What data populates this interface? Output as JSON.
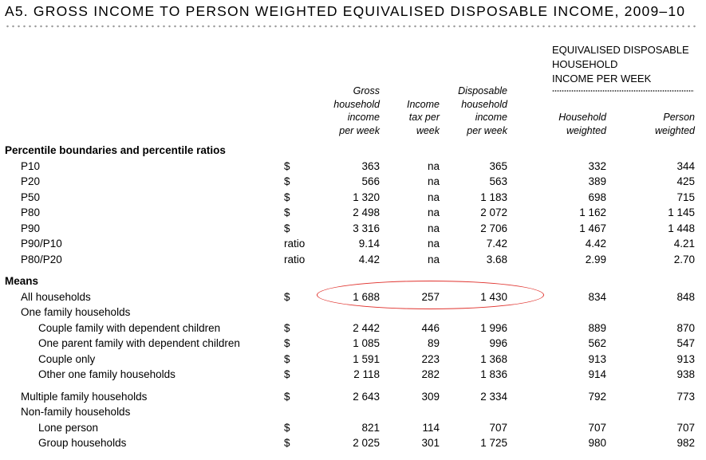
{
  "title": "A5. GROSS INCOME TO PERSON WEIGHTED EQUIVALISED DISPOSABLE INCOME, 2009–10",
  "group_header": [
    "EQUIVALISED DISPOSABLE",
    "HOUSEHOLD",
    "INCOME PER WEEK"
  ],
  "columns": {
    "gross": [
      "Gross",
      "household",
      "income",
      "per week"
    ],
    "tax": [
      "Income",
      "tax per",
      "week"
    ],
    "disposable": [
      "Disposable",
      "household",
      "income",
      "per week"
    ],
    "household_weighted": [
      "Household",
      "weighted"
    ],
    "person_weighted": [
      "Person",
      "weighted"
    ]
  },
  "sections": {
    "percentiles": "Percentile boundaries and percentile ratios",
    "means": "Means"
  },
  "percentile_rows": [
    {
      "label": "P10",
      "unit": "$",
      "values": [
        "363",
        "na",
        "365",
        "332",
        "344"
      ]
    },
    {
      "label": "P20",
      "unit": "$",
      "values": [
        "566",
        "na",
        "563",
        "389",
        "425"
      ]
    },
    {
      "label": "P50",
      "unit": "$",
      "values": [
        "1 320",
        "na",
        "1 183",
        "698",
        "715"
      ]
    },
    {
      "label": "P80",
      "unit": "$",
      "values": [
        "2 498",
        "na",
        "2 072",
        "1 162",
        "1 145"
      ]
    },
    {
      "label": "P90",
      "unit": "$",
      "values": [
        "3 316",
        "na",
        "2 706",
        "1 467",
        "1 448"
      ]
    },
    {
      "label": "P90/P10",
      "unit": "ratio",
      "values": [
        "9.14",
        "na",
        "7.42",
        "4.42",
        "4.21"
      ]
    },
    {
      "label": "P80/P20",
      "unit": "ratio",
      "values": [
        "4.42",
        "na",
        "3.68",
        "2.99",
        "2.70"
      ]
    }
  ],
  "mean_rows": [
    {
      "label": "All households",
      "unit": "$",
      "values": [
        "1 688",
        "257",
        "1 430",
        "834",
        "848"
      ]
    },
    {
      "label": "One family households"
    },
    {
      "label": "Couple family with dependent children",
      "unit": "$",
      "values": [
        "2 442",
        "446",
        "1 996",
        "889",
        "870"
      ]
    },
    {
      "label": "One parent family with dependent children",
      "unit": "$",
      "values": [
        "1 085",
        "89",
        "996",
        "562",
        "547"
      ]
    },
    {
      "label": "Couple only",
      "unit": "$",
      "values": [
        "1 591",
        "223",
        "1 368",
        "913",
        "913"
      ]
    },
    {
      "label": "Other one family households",
      "unit": "$",
      "values": [
        "2 118",
        "282",
        "1 836",
        "914",
        "938"
      ]
    },
    {
      "label": "Multiple family households",
      "unit": "$",
      "values": [
        "2 643",
        "309",
        "2 334",
        "792",
        "773"
      ]
    },
    {
      "label": "Non-family households"
    },
    {
      "label": "Lone person",
      "unit": "$",
      "values": [
        "821",
        "114",
        "707",
        "707",
        "707"
      ]
    },
    {
      "label": "Group households",
      "unit": "$",
      "values": [
        "2 025",
        "301",
        "1 725",
        "980",
        "982"
      ]
    }
  ]
}
